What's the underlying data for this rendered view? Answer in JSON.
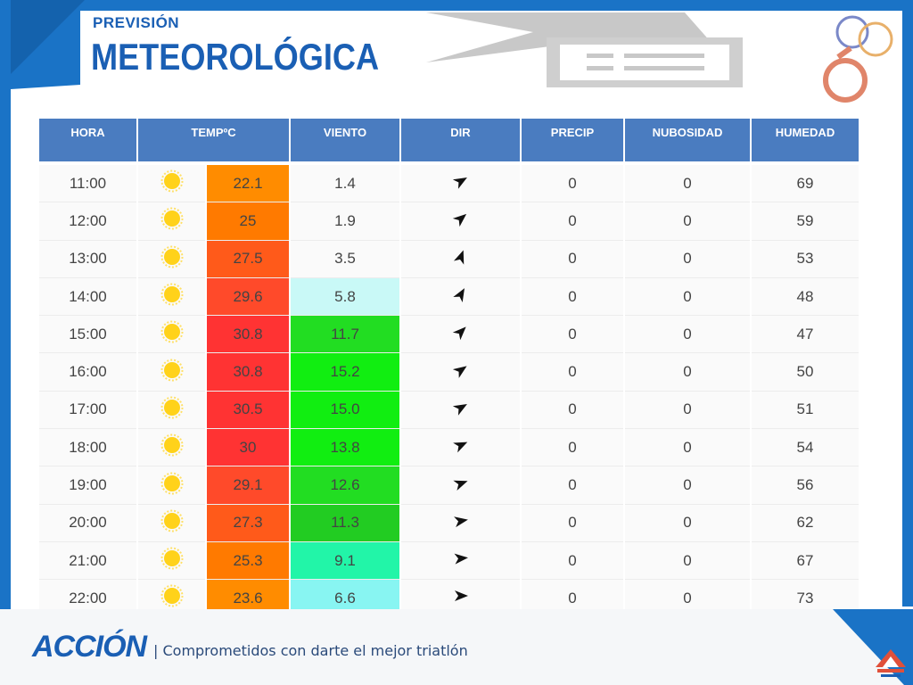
{
  "header": {
    "title_small": "PREVISIÓN",
    "title_big": "METEOROLÓGICA"
  },
  "table": {
    "columns": [
      "HORA",
      "TEMPºC",
      "VIENTO",
      "DIR",
      "PRECIP",
      "NUBOSIDAD",
      "HUMEDAD"
    ],
    "rows": [
      {
        "hora": "11:00",
        "icon": "sun-icon",
        "temp": "22.1",
        "temp_color": "#ff8c00",
        "viento": "1.4",
        "viento_color": "",
        "dir_deg": 60,
        "precip": "0",
        "nub": "0",
        "hum": "69"
      },
      {
        "hora": "12:00",
        "icon": "sun-icon",
        "temp": "25",
        "temp_color": "#ff7a00",
        "viento": "1.9",
        "viento_color": "",
        "dir_deg": 50,
        "precip": "0",
        "nub": "0",
        "hum": "59"
      },
      {
        "hora": "13:00",
        "icon": "sun-icon",
        "temp": "27.5",
        "temp_color": "#ff5a1a",
        "viento": "3.5",
        "viento_color": "",
        "dir_deg": 20,
        "precip": "0",
        "nub": "0",
        "hum": "53"
      },
      {
        "hora": "14:00",
        "icon": "sun-icon",
        "temp": "29.6",
        "temp_color": "#ff4a2a",
        "viento": "5.8",
        "viento_color": "#c9f9f7",
        "dir_deg": 30,
        "precip": "0",
        "nub": "0",
        "hum": "48"
      },
      {
        "hora": "15:00",
        "icon": "sun-icon",
        "temp": "30.8",
        "temp_color": "#ff3333",
        "viento": "11.7",
        "viento_color": "#22dd22",
        "dir_deg": 45,
        "precip": "0",
        "nub": "0",
        "hum": "47"
      },
      {
        "hora": "16:00",
        "icon": "sun-icon",
        "temp": "30.8",
        "temp_color": "#ff3333",
        "viento": "15.2",
        "viento_color": "#11ee11",
        "dir_deg": 55,
        "precip": "0",
        "nub": "0",
        "hum": "50"
      },
      {
        "hora": "17:00",
        "icon": "sun-icon",
        "temp": "30.5",
        "temp_color": "#ff3333",
        "viento": "15.0",
        "viento_color": "#11ee11",
        "dir_deg": 60,
        "precip": "0",
        "nub": "0",
        "hum": "51"
      },
      {
        "hora": "18:00",
        "icon": "sun-icon",
        "temp": "30",
        "temp_color": "#ff3333",
        "viento": "13.8",
        "viento_color": "#11ee11",
        "dir_deg": 65,
        "precip": "0",
        "nub": "0",
        "hum": "54"
      },
      {
        "hora": "19:00",
        "icon": "sun-icon",
        "temp": "29.1",
        "temp_color": "#ff4a2a",
        "viento": "12.6",
        "viento_color": "#22dd22",
        "dir_deg": 70,
        "precip": "0",
        "nub": "0",
        "hum": "56"
      },
      {
        "hora": "20:00",
        "icon": "sun-icon",
        "temp": "27.3",
        "temp_color": "#ff5a1a",
        "viento": "11.3",
        "viento_color": "#22cc22",
        "dir_deg": 80,
        "precip": "0",
        "nub": "0",
        "hum": "62"
      },
      {
        "hora": "21:00",
        "icon": "sun-icon",
        "temp": "25.3",
        "temp_color": "#ff7a00",
        "viento": "9.1",
        "viento_color": "#22f5a8",
        "dir_deg": 85,
        "precip": "0",
        "nub": "0",
        "hum": "67"
      },
      {
        "hora": "22:00",
        "icon": "sun-icon",
        "temp": "23.6",
        "temp_color": "#ff8c00",
        "viento": "6.6",
        "viento_color": "#88f5f2",
        "dir_deg": 90,
        "precip": "0",
        "nub": "0",
        "hum": "73"
      }
    ]
  },
  "footer": {
    "brand": "ACCIÓN",
    "slogan": "| Comprometidos con darte el mejor triatlón"
  },
  "colors": {
    "accent_blue": "#1a73c6",
    "header_blue": "#4a7cc0",
    "title_blue": "#1a5fb4"
  }
}
